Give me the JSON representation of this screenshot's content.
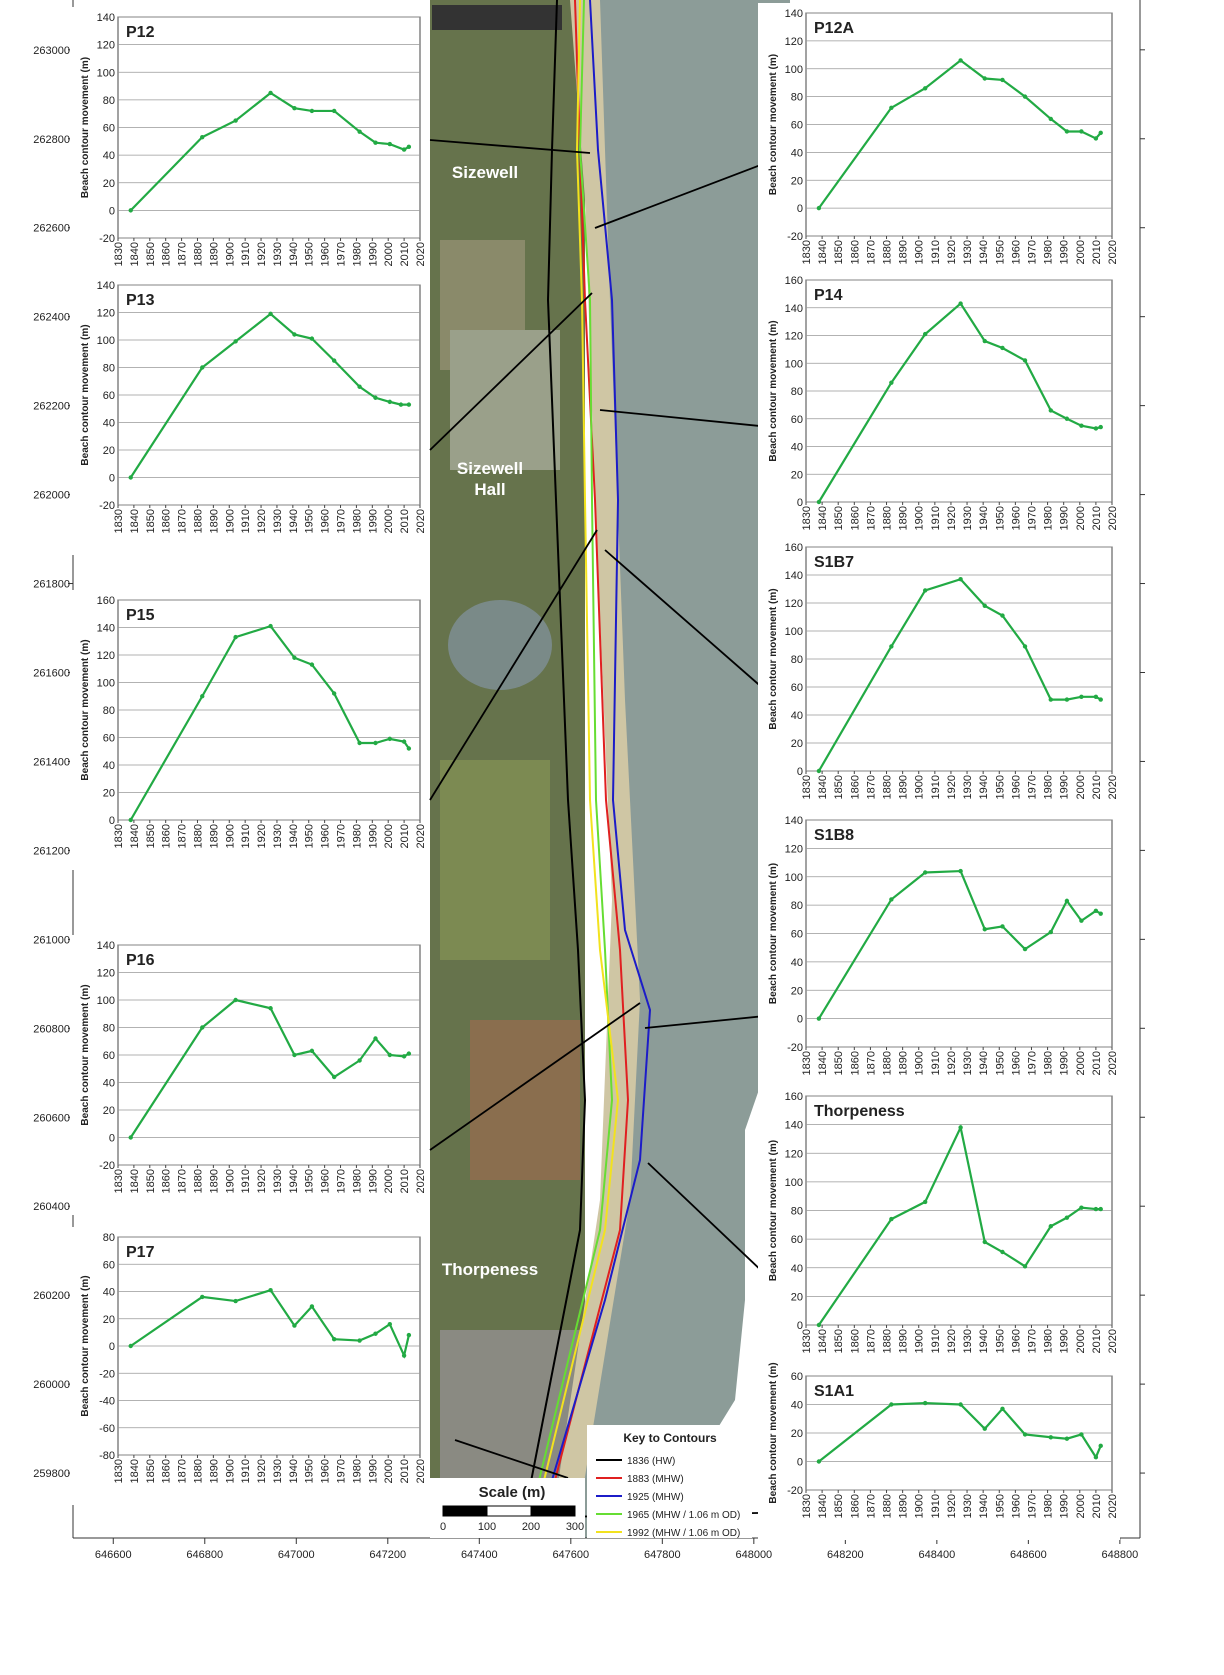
{
  "chart_data": [
    {
      "type": "map",
      "xlim": [
        646512,
        648844
      ],
      "ylim": [
        259654,
        263112
      ],
      "xticks": [
        646600,
        646800,
        647000,
        647200,
        647400,
        647600,
        647800,
        648000,
        648200,
        648400,
        648600,
        648800
      ],
      "yticks": [
        259800,
        260000,
        260200,
        260400,
        260600,
        260800,
        261000,
        261200,
        261400,
        261600,
        261800,
        262000,
        262200,
        262400,
        262600,
        262800,
        263000
      ],
      "place_labels": [
        "Sizewell",
        "Sizewell Hall",
        "Thorpeness"
      ],
      "legend": {
        "title": "Key to Contours",
        "series": [
          {
            "name": "1836 (HW)",
            "color": "#000000"
          },
          {
            "name": "1883 (MHW)",
            "color": "#e02020"
          },
          {
            "name": "1925 (MHW)",
            "color": "#1c1cc8"
          },
          {
            "name": "1965 (MHW / 1.06 m OD)",
            "color": "#66dd33"
          },
          {
            "name": "1992 (MHW / 1.06 m OD)",
            "color": "#f2e21e"
          }
        ]
      },
      "scale_bar": {
        "title": "Scale (m)",
        "ticks": [
          0,
          100,
          200,
          300
        ]
      }
    },
    {
      "type": "line",
      "title": "P12",
      "ylabel": "Beach contour movement (m)",
      "color": "#22aa44",
      "grid": true,
      "x": [
        1838,
        1883,
        1904,
        1926,
        1941,
        1952,
        1966,
        1982,
        1992,
        2001,
        2010,
        2013
      ],
      "values": [
        0,
        53,
        65,
        85,
        74,
        72,
        72,
        57,
        49,
        48,
        44,
        46
      ],
      "xlim": [
        1830,
        2020
      ],
      "ylim": [
        -20,
        140
      ],
      "xticks": [
        1830,
        1840,
        1850,
        1860,
        1870,
        1880,
        1890,
        1900,
        1910,
        1920,
        1930,
        1940,
        1950,
        1960,
        1970,
        1980,
        1990,
        2000,
        2010,
        2020
      ],
      "yticks": [
        -20,
        0,
        20,
        40,
        60,
        80,
        100,
        120,
        140
      ]
    },
    {
      "type": "line",
      "title": "P13",
      "ylabel": "Beach contour movement (m)",
      "color": "#22aa44",
      "grid": true,
      "x": [
        1838,
        1883,
        1904,
        1926,
        1941,
        1952,
        1966,
        1982,
        1992,
        2001,
        2008,
        2013
      ],
      "values": [
        0,
        80,
        99,
        119,
        104,
        101,
        85,
        66,
        58,
        55,
        53,
        53
      ],
      "xlim": [
        1830,
        2020
      ],
      "ylim": [
        -20,
        140
      ],
      "xticks": [
        1830,
        1840,
        1850,
        1860,
        1870,
        1880,
        1890,
        1900,
        1910,
        1920,
        1930,
        1940,
        1950,
        1960,
        1970,
        1980,
        1990,
        2000,
        2010,
        2020
      ],
      "yticks": [
        -20,
        0,
        20,
        40,
        60,
        80,
        100,
        120,
        140
      ]
    },
    {
      "type": "line",
      "title": "P15",
      "ylabel": "Beach contour movement (m)",
      "color": "#22aa44",
      "grid": true,
      "x": [
        1838,
        1883,
        1904,
        1926,
        1941,
        1952,
        1966,
        1982,
        1992,
        2001,
        2010,
        2013
      ],
      "values": [
        0,
        90,
        133,
        141,
        118,
        113,
        92,
        56,
        56,
        59,
        57,
        52
      ],
      "xlim": [
        1830,
        2020
      ],
      "ylim": [
        0,
        160
      ],
      "xticks": [
        1830,
        1840,
        1850,
        1860,
        1870,
        1880,
        1890,
        1900,
        1910,
        1920,
        1930,
        1940,
        1950,
        1960,
        1970,
        1980,
        1990,
        2000,
        2010,
        2020
      ],
      "yticks": [
        0,
        20,
        40,
        60,
        80,
        100,
        120,
        140,
        160
      ]
    },
    {
      "type": "line",
      "title": "P16",
      "ylabel": "Beach contour movement (m)",
      "color": "#22aa44",
      "grid": true,
      "x": [
        1838,
        1883,
        1904,
        1926,
        1941,
        1952,
        1966,
        1982,
        1992,
        2001,
        2010,
        2013
      ],
      "values": [
        0,
        80,
        100,
        94,
        60,
        63,
        44,
        56,
        72,
        60,
        59,
        61
      ],
      "xlim": [
        1830,
        2020
      ],
      "ylim": [
        -20,
        140
      ],
      "xticks": [
        1830,
        1840,
        1850,
        1860,
        1870,
        1880,
        1890,
        1900,
        1910,
        1920,
        1930,
        1940,
        1950,
        1960,
        1970,
        1980,
        1990,
        2000,
        2010,
        2020
      ],
      "yticks": [
        -20,
        0,
        20,
        40,
        60,
        80,
        100,
        120,
        140
      ]
    },
    {
      "type": "line",
      "title": "P17",
      "ylabel": "Beach contour movement (m)",
      "color": "#22aa44",
      "grid": true,
      "x": [
        1838,
        1883,
        1904,
        1926,
        1941,
        1952,
        1966,
        1982,
        1992,
        2001,
        2010,
        2013
      ],
      "values": [
        0,
        36,
        33,
        41,
        15,
        29,
        5,
        4,
        9,
        16,
        -7,
        8
      ],
      "xlim": [
        1830,
        2020
      ],
      "ylim": [
        -80,
        80
      ],
      "xticks": [
        1830,
        1840,
        1850,
        1860,
        1870,
        1880,
        1890,
        1900,
        1910,
        1920,
        1930,
        1940,
        1950,
        1960,
        1970,
        1980,
        1990,
        2000,
        2010,
        2020
      ],
      "yticks": [
        -80,
        -60,
        -40,
        -20,
        0,
        20,
        40,
        60,
        80
      ]
    },
    {
      "type": "line",
      "title": "P12A",
      "ylabel": "Beach contour movement (m)",
      "color": "#22aa44",
      "grid": true,
      "x": [
        1838,
        1883,
        1904,
        1926,
        1941,
        1952,
        1966,
        1982,
        1992,
        2001,
        2010,
        2013
      ],
      "values": [
        0,
        72,
        86,
        106,
        93,
        92,
        80,
        64,
        55,
        55,
        50,
        54
      ],
      "xlim": [
        1830,
        2020
      ],
      "ylim": [
        -20,
        140
      ],
      "xticks": [
        1830,
        1840,
        1850,
        1860,
        1870,
        1880,
        1890,
        1900,
        1910,
        1920,
        1930,
        1940,
        1950,
        1960,
        1970,
        1980,
        1990,
        2000,
        2010,
        2020
      ],
      "yticks": [
        -20,
        0,
        20,
        40,
        60,
        80,
        100,
        120,
        140
      ]
    },
    {
      "type": "line",
      "title": "P14",
      "ylabel": "Beach contour movement (m)",
      "color": "#22aa44",
      "grid": true,
      "x": [
        1838,
        1883,
        1904,
        1926,
        1941,
        1952,
        1966,
        1982,
        1992,
        2001,
        2010,
        2013
      ],
      "values": [
        0,
        86,
        121,
        143,
        116,
        111,
        102,
        66,
        60,
        55,
        53,
        54
      ],
      "xlim": [
        1830,
        2020
      ],
      "ylim": [
        0,
        160
      ],
      "xticks": [
        1830,
        1840,
        1850,
        1860,
        1870,
        1880,
        1890,
        1900,
        1910,
        1920,
        1930,
        1940,
        1950,
        1960,
        1970,
        1980,
        1990,
        2000,
        2010,
        2020
      ],
      "yticks": [
        0,
        20,
        40,
        60,
        80,
        100,
        120,
        140,
        160
      ]
    },
    {
      "type": "line",
      "title": "S1B7",
      "ylabel": "Beach contour movement (m)",
      "color": "#22aa44",
      "grid": true,
      "x": [
        1838,
        1883,
        1904,
        1926,
        1941,
        1952,
        1966,
        1982,
        1992,
        2001,
        2010,
        2013
      ],
      "values": [
        0,
        89,
        129,
        137,
        118,
        111,
        89,
        51,
        51,
        53,
        53,
        51
      ],
      "xlim": [
        1830,
        2020
      ],
      "ylim": [
        0,
        160
      ],
      "xticks": [
        1830,
        1840,
        1850,
        1860,
        1870,
        1880,
        1890,
        1900,
        1910,
        1920,
        1930,
        1940,
        1950,
        1960,
        1970,
        1980,
        1990,
        2000,
        2010,
        2020
      ],
      "yticks": [
        0,
        20,
        40,
        60,
        80,
        100,
        120,
        140,
        160
      ]
    },
    {
      "type": "line",
      "title": "S1B8",
      "ylabel": "Beach contour movement (m)",
      "color": "#22aa44",
      "grid": true,
      "x": [
        1838,
        1883,
        1904,
        1926,
        1941,
        1952,
        1966,
        1982,
        1992,
        2001,
        2010,
        2013
      ],
      "values": [
        0,
        84,
        103,
        104,
        63,
        65,
        49,
        61,
        83,
        69,
        76,
        74
      ],
      "xlim": [
        1830,
        2020
      ],
      "ylim": [
        -20,
        140
      ],
      "xticks": [
        1830,
        1840,
        1850,
        1860,
        1870,
        1880,
        1890,
        1900,
        1910,
        1920,
        1930,
        1940,
        1950,
        1960,
        1970,
        1980,
        1990,
        2000,
        2010,
        2020
      ],
      "yticks": [
        -20,
        0,
        20,
        40,
        60,
        80,
        100,
        120,
        140
      ]
    },
    {
      "type": "line",
      "title": "Thorpeness",
      "ylabel": "Beach contour movement (m)",
      "color": "#22aa44",
      "grid": true,
      "x": [
        1838,
        1883,
        1904,
        1926,
        1941,
        1952,
        1966,
        1982,
        1992,
        2001,
        2010,
        2013
      ],
      "values": [
        0,
        74,
        86,
        138,
        58,
        51,
        41,
        69,
        75,
        82,
        81,
        81
      ],
      "xlim": [
        1830,
        2020
      ],
      "ylim": [
        0,
        160
      ],
      "xticks": [
        1830,
        1840,
        1850,
        1860,
        1870,
        1880,
        1890,
        1900,
        1910,
        1920,
        1930,
        1940,
        1950,
        1960,
        1970,
        1980,
        1990,
        2000,
        2010,
        2020
      ],
      "yticks": [
        0,
        20,
        40,
        60,
        80,
        100,
        120,
        140,
        160
      ]
    },
    {
      "type": "line",
      "title": "S1A1",
      "ylabel": "Beach contour movement (m)",
      "color": "#22aa44",
      "grid": true,
      "x": [
        1838,
        1883,
        1904,
        1926,
        1941,
        1952,
        1966,
        1982,
        1992,
        2001,
        2010,
        2013
      ],
      "values": [
        0,
        40,
        41,
        40,
        23,
        37,
        19,
        17,
        16,
        19,
        3,
        11
      ],
      "xlim": [
        1830,
        2020
      ],
      "ylim": [
        -20,
        60
      ],
      "xticks": [
        1830,
        1840,
        1850,
        1860,
        1870,
        1880,
        1890,
        1900,
        1910,
        1920,
        1930,
        1940,
        1950,
        1960,
        1970,
        1980,
        1990,
        2000,
        2010,
        2020
      ],
      "yticks": [
        -20,
        0,
        20,
        40,
        60
      ]
    }
  ]
}
